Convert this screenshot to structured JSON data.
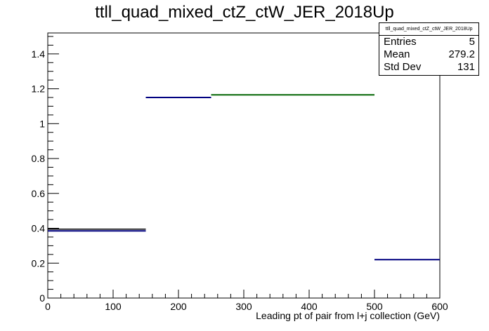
{
  "title": "ttll_quad_mixed_ctZ_ctW_JER_2018Up",
  "stats": {
    "title": "ttll_quad_mixed_ctZ_ctW_JER_2018Up",
    "entries_label": "Entries",
    "entries_value": "5",
    "mean_label": "Mean",
    "mean_value": "279.2",
    "stddev_label": "Std Dev",
    "stddev_value": "131"
  },
  "chart_data": {
    "type": "histogram",
    "title": "ttll_quad_mixed_ctZ_ctW_JER_2018Up",
    "xlabel": "Leading pt of pair from l+j collection (GeV)",
    "ylabel": "",
    "xlim": [
      0,
      600
    ],
    "ylim": [
      0,
      1.52
    ],
    "x_ticks": [
      0,
      100,
      200,
      300,
      400,
      500,
      600
    ],
    "y_ticks": [
      0,
      0.2,
      0.4,
      0.6,
      0.8,
      1,
      1.2,
      1.4
    ],
    "x_tick_labels": [
      "0",
      "100",
      "200",
      "300",
      "400",
      "500",
      "600"
    ],
    "y_tick_labels": [
      "0",
      "0.2",
      "0.4",
      "0.6",
      "0.8",
      "1",
      "1.2",
      "1.4"
    ],
    "bins": [
      {
        "x0": 0,
        "x1": 150,
        "y": 0.385,
        "color": "#000080"
      },
      {
        "x0": 150,
        "x1": 250,
        "y": 1.15,
        "color": "#000080"
      },
      {
        "x0": 250,
        "x1": 500,
        "y": 1.165,
        "color": "#006400"
      },
      {
        "x0": 500,
        "x1": 600,
        "y": 0.22,
        "color": "#000080"
      }
    ],
    "overlay_lines": [
      {
        "x0": 0,
        "x1": 150,
        "y": 0.395,
        "color": "#000000"
      }
    ],
    "colors": {
      "axis": "#000000",
      "main": "#000080",
      "alt": "#006400"
    }
  }
}
